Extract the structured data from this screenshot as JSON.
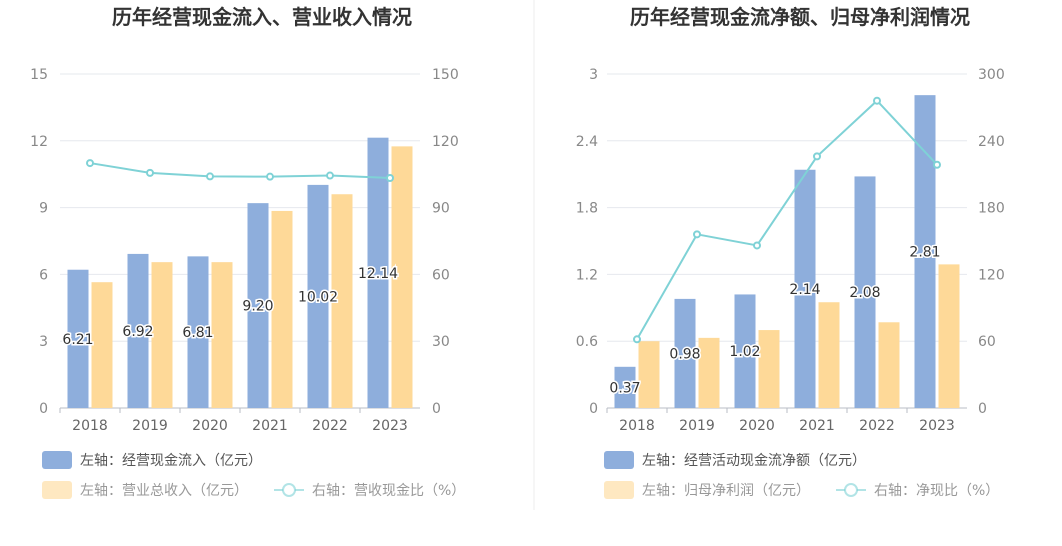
{
  "colors": {
    "bar1": "#8eaedc",
    "bar2": "#fed998",
    "line": "#7fd2d6",
    "grid": "#e6e8ee",
    "axis": "#b8bcc6",
    "divider": "#eeeeee"
  },
  "chart_data": [
    {
      "type": "bar",
      "title": "历年经营现金流入、营业收入情况",
      "categories": [
        "2018",
        "2019",
        "2020",
        "2021",
        "2022",
        "2023"
      ],
      "left_axis": {
        "range": [
          0,
          15
        ],
        "ticks": [
          "0",
          "3",
          "6",
          "9",
          "12",
          "15"
        ]
      },
      "right_axis": {
        "range": [
          0,
          150
        ],
        "ticks": [
          "0",
          "30",
          "60",
          "90",
          "120",
          "150"
        ]
      },
      "series": [
        {
          "name": "左轴：经营现金流入（亿元）",
          "axis": "left",
          "kind": "bar",
          "values": [
            6.21,
            6.92,
            6.81,
            9.2,
            10.02,
            12.14
          ],
          "labels": [
            "6.21",
            "6.92",
            "6.81",
            "9.20",
            "10.02",
            "12.14"
          ]
        },
        {
          "name": "左轴：营业总收入（亿元）",
          "axis": "left",
          "kind": "bar",
          "values": [
            5.65,
            6.55,
            6.55,
            8.85,
            9.6,
            11.75
          ]
        },
        {
          "name": "右轴：营收现金比（%）",
          "axis": "right",
          "kind": "line",
          "values": [
            110,
            105.6,
            104,
            103.9,
            104.4,
            103.3
          ]
        }
      ],
      "legend": [
        {
          "label": "左轴：经营现金流入（亿元）",
          "kind": "bar",
          "series": 0
        },
        {
          "label": "左轴：营业总收入（亿元）",
          "kind": "bar",
          "series": 1
        },
        {
          "label": "右轴：营收现金比（%）",
          "kind": "line",
          "series": 2
        }
      ],
      "legend_position": "bottom"
    },
    {
      "type": "bar",
      "title": "历年经营现金流净额、归母净利润情况",
      "categories": [
        "2018",
        "2019",
        "2020",
        "2021",
        "2022",
        "2023"
      ],
      "left_axis": {
        "range": [
          0,
          3
        ],
        "ticks": [
          "0",
          "0.6",
          "1.2",
          "1.8",
          "2.4",
          "3"
        ]
      },
      "right_axis": {
        "range": [
          0,
          300
        ],
        "ticks": [
          "0",
          "60",
          "120",
          "180",
          "240",
          "300"
        ]
      },
      "series": [
        {
          "name": "左轴：经营活动现金流净额（亿元）",
          "axis": "left",
          "kind": "bar",
          "values": [
            0.37,
            0.98,
            1.02,
            2.14,
            2.08,
            2.81
          ],
          "labels": [
            "0.37",
            "0.98",
            "1.02",
            "2.14",
            "2.08",
            "2.81"
          ]
        },
        {
          "name": "左轴：归母净利润（亿元）",
          "axis": "left",
          "kind": "bar",
          "values": [
            0.6,
            0.63,
            0.7,
            0.95,
            0.77,
            1.29
          ]
        },
        {
          "name": "右轴：净现比（%）",
          "axis": "right",
          "kind": "line",
          "values": [
            61.7,
            156,
            146,
            226,
            276,
            218.5
          ]
        }
      ],
      "legend": [
        {
          "label": "左轴：经营活动现金流净额（亿元）",
          "kind": "bar",
          "series": 0
        },
        {
          "label": "左轴：归母净利润（亿元）",
          "kind": "bar",
          "series": 1
        },
        {
          "label": "右轴：净现比（%）",
          "kind": "line",
          "series": 2
        }
      ],
      "legend_position": "bottom"
    }
  ]
}
